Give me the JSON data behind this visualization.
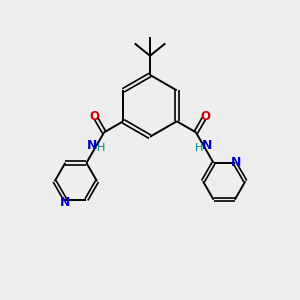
{
  "background_color": "#eeeeee",
  "bond_color": "#000000",
  "n_color": "#0000cc",
  "o_color": "#cc0000",
  "h_color": "#008080",
  "figsize": [
    3.0,
    3.0
  ],
  "dpi": 100,
  "xlim": [
    0,
    10
  ],
  "ylim": [
    0,
    10
  ]
}
